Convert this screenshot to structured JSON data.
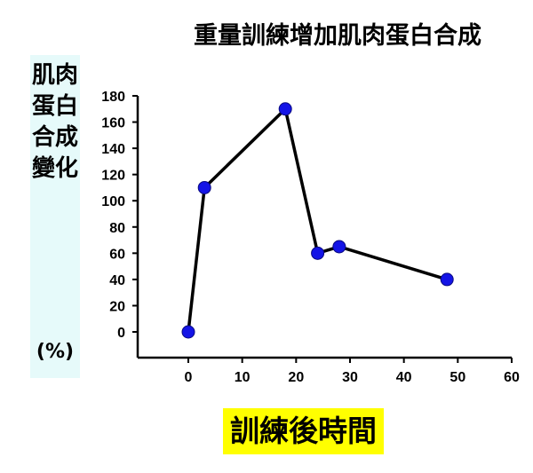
{
  "chart_data": {
    "type": "line",
    "title": "重量訓練增加肌肉蛋白合成",
    "ylabel": "肌肉蛋白合成變化",
    "ylabel_unit": "(%)",
    "xlabel": "訓練後時間",
    "x": [
      0,
      3,
      18,
      24,
      28,
      48
    ],
    "y": [
      0,
      110,
      170,
      60,
      65,
      40
    ],
    "xlim": [
      -8,
      60
    ],
    "ylim": [
      -18,
      180
    ],
    "xticks": [
      0,
      10,
      20,
      30,
      40,
      50,
      60
    ],
    "yticks": [
      0,
      20,
      40,
      60,
      80,
      100,
      120,
      140,
      160,
      180
    ],
    "grid": false,
    "line_color": "#000000",
    "marker_color": "#1414e6",
    "ylabel_background": "#e6fafa",
    "xlabel_background": "#ffff00"
  }
}
